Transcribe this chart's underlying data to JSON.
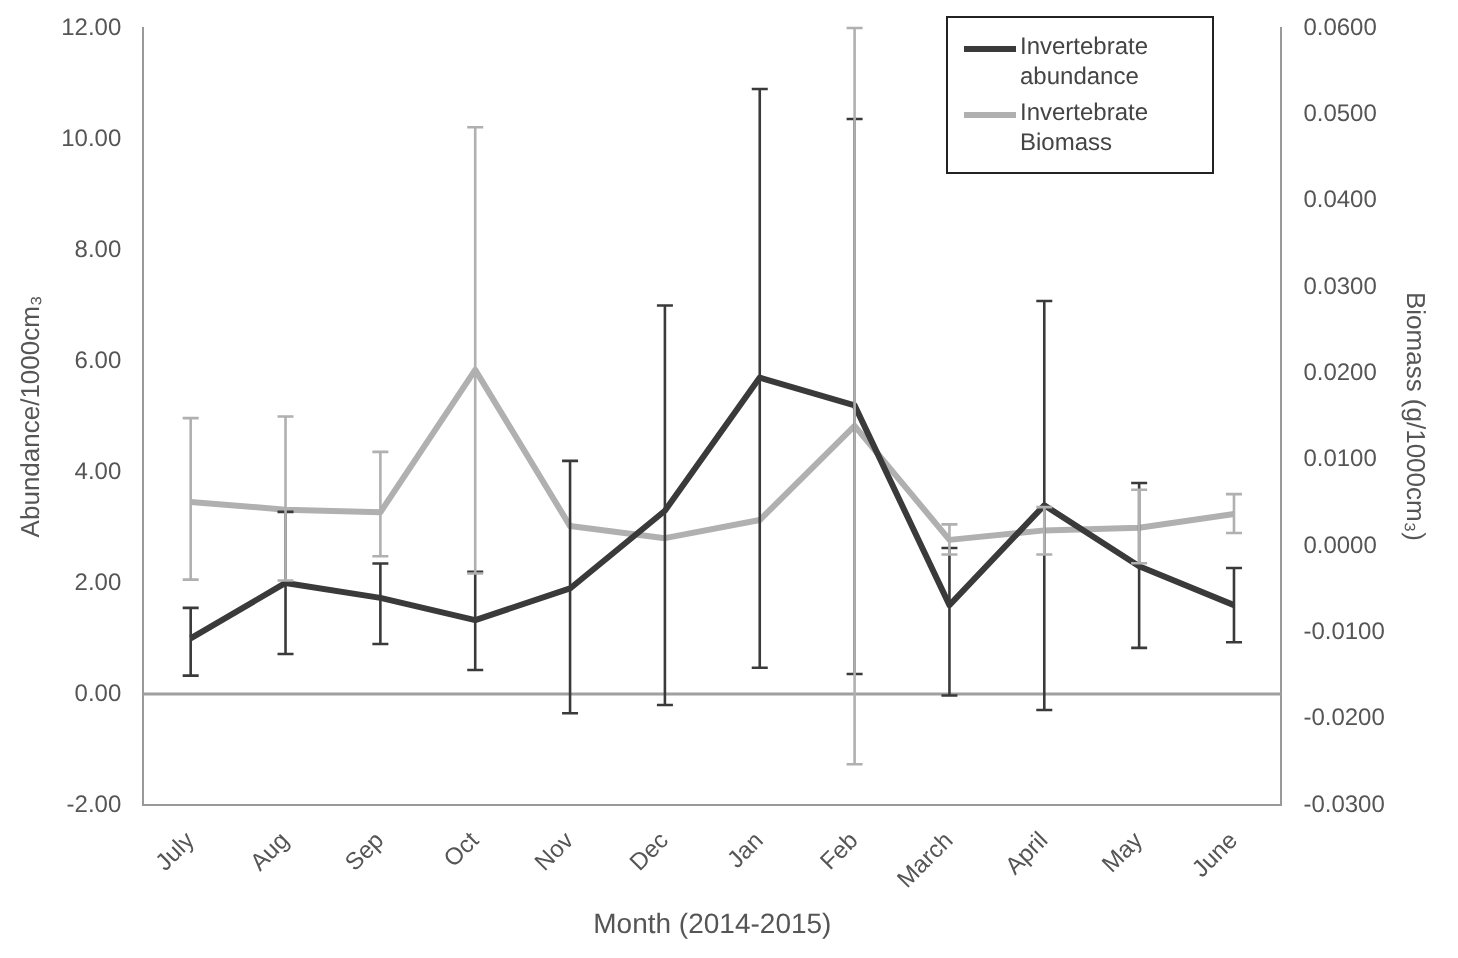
{
  "chart_data": {
    "type": "line",
    "xlabel": "Month (2014-2015)",
    "ylabel": "Abundance/1000cm₃",
    "y2label": "Biomass (g/1000cm₃)",
    "categories": [
      "July",
      "Aug",
      "Sep",
      "Oct",
      "Nov",
      "Dec",
      "Jan",
      "Feb",
      "March",
      "April",
      "May",
      "June"
    ],
    "series": [
      {
        "name": "Invertebrate abundance",
        "color": "#3a3a3a",
        "values": [
          1.0,
          2.0,
          1.73,
          1.33,
          1.9,
          3.3,
          5.7,
          5.2,
          1.6,
          3.4,
          2.3,
          1.6
        ],
        "errors": [
          [
            0.33,
            1.55
          ],
          [
            0.72,
            3.28
          ],
          [
            0.9,
            2.35
          ],
          [
            0.43,
            2.2
          ],
          [
            -0.35,
            4.2
          ],
          [
            -0.2,
            7.0
          ],
          [
            0.47,
            10.9
          ],
          [
            0.36,
            10.36
          ],
          [
            -0.03,
            2.63
          ],
          [
            -0.29,
            7.08
          ],
          [
            0.83,
            3.8
          ],
          [
            0.93,
            2.27
          ]
        ]
      },
      {
        "name": "Invertebrate Biomass",
        "color": "#b0b0b0",
        "axis": "y2",
        "values": [
          0.0051,
          0.0042,
          0.0039,
          0.0204,
          0.0023,
          0.0009,
          0.003,
          0.0139,
          0.0007,
          0.0018,
          0.0021,
          0.0037
        ],
        "errors": [
          [
            -0.0039,
            0.0148
          ],
          [
            -0.004,
            0.015
          ],
          [
            -0.0012,
            0.0109
          ],
          [
            -0.0032,
            0.0485
          ],
          null,
          null,
          null,
          [
            -0.0253,
            0.06
          ],
          [
            -0.001,
            0.0025
          ],
          [
            -0.001,
            0.0045
          ],
          [
            -0.002,
            0.0065
          ],
          [
            0.0015,
            0.006
          ]
        ]
      }
    ],
    "ylim": [
      -2,
      12
    ],
    "yticks": [
      {
        "value": -2,
        "label": "-2.00"
      },
      {
        "value": 0,
        "label": "0.00"
      },
      {
        "value": 2,
        "label": "2.00"
      },
      {
        "value": 4,
        "label": "4.00"
      },
      {
        "value": 6,
        "label": "6.00"
      },
      {
        "value": 8,
        "label": "8.00"
      },
      {
        "value": 10,
        "label": "10.00"
      },
      {
        "value": 12,
        "label": "12.00"
      }
    ],
    "y2lim": [
      -0.03,
      0.06
    ],
    "y2ticks": [
      {
        "value": -0.03,
        "label": "-0.0300"
      },
      {
        "value": -0.02,
        "label": "-0.0200"
      },
      {
        "value": -0.01,
        "label": "-0.0100"
      },
      {
        "value": 0,
        "label": "0.0000"
      },
      {
        "value": 0.01,
        "label": "0.0100"
      },
      {
        "value": 0.02,
        "label": "0.0200"
      },
      {
        "value": 0.03,
        "label": "0.0300"
      },
      {
        "value": 0.04,
        "label": "0.0400"
      },
      {
        "value": 0.05,
        "label": "0.0500"
      },
      {
        "value": 0.06,
        "label": "0.0600"
      }
    ],
    "ref_lines": [
      {
        "axis": "y",
        "value": 0,
        "color": "#a0a0a0"
      }
    ],
    "grid": false,
    "legend": "top right",
    "marker": "none",
    "line_style": "solid"
  }
}
